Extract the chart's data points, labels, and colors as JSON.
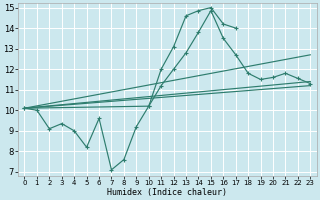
{
  "xlabel": "Humidex (Indice chaleur)",
  "bg_color": "#cce8ee",
  "grid_color": "#ffffff",
  "line_color": "#2e7d6e",
  "xlim": [
    -0.5,
    23.5
  ],
  "ylim": [
    6.8,
    15.2
  ],
  "xtick_labels": [
    "0",
    "1",
    "2",
    "3",
    "4",
    "5",
    "6",
    "7",
    "8",
    "9",
    "10",
    "11",
    "12",
    "13",
    "14",
    "15",
    "16",
    "17",
    "18",
    "19",
    "20",
    "21",
    "22",
    "23"
  ],
  "xtick_vals": [
    0,
    1,
    2,
    3,
    4,
    5,
    6,
    7,
    8,
    9,
    10,
    11,
    12,
    13,
    14,
    15,
    16,
    17,
    18,
    19,
    20,
    21,
    22,
    23
  ],
  "ytick_vals": [
    7,
    8,
    9,
    10,
    11,
    12,
    13,
    14,
    15
  ],
  "line1_x": [
    0,
    1,
    2,
    3,
    4,
    5,
    6,
    7,
    8,
    9,
    10,
    11,
    12,
    13,
    14,
    15,
    16,
    17
  ],
  "line1_y": [
    10.1,
    10.0,
    9.1,
    9.35,
    9.0,
    8.2,
    9.6,
    7.1,
    7.6,
    9.2,
    10.2,
    12.0,
    13.1,
    14.6,
    14.85,
    15.0,
    14.2,
    14.0
  ],
  "line2_x": [
    0,
    10,
    11,
    12,
    13,
    14,
    15,
    16,
    17,
    18,
    19,
    20,
    21,
    22,
    23
  ],
  "line2_y": [
    10.1,
    10.2,
    11.2,
    12.0,
    12.8,
    13.8,
    14.85,
    13.5,
    12.7,
    11.8,
    11.5,
    11.6,
    11.8,
    11.55,
    11.3
  ],
  "line3_x": [
    0,
    23
  ],
  "line3_y": [
    10.1,
    12.7
  ],
  "line4_x": [
    0,
    23
  ],
  "line4_y": [
    10.1,
    11.4
  ],
  "line5_x": [
    0,
    23
  ],
  "line5_y": [
    10.1,
    11.2
  ]
}
